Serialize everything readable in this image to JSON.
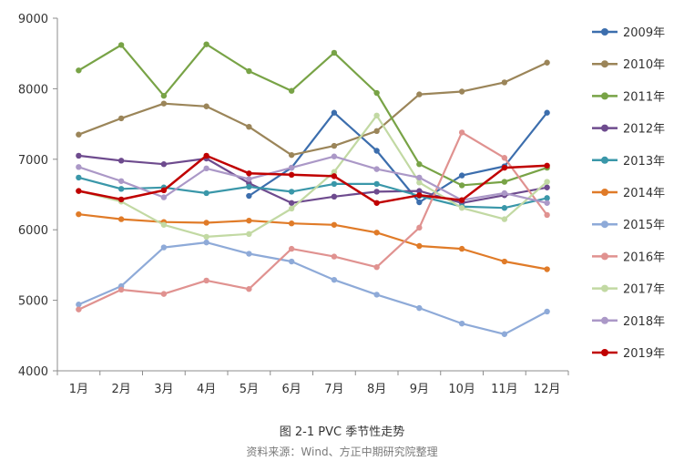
{
  "chart_data": {
    "type": "line",
    "title": "图 2-1 PVC 季节性走势",
    "source": "资料来源：Wind、方正中期研究院整理",
    "categories": [
      "1月",
      "2月",
      "3月",
      "4月",
      "5月",
      "6月",
      "7月",
      "8月",
      "9月",
      "10月",
      "11月",
      "12月"
    ],
    "ylim": [
      4000,
      9000
    ],
    "yticks": [
      4000,
      5000,
      6000,
      7000,
      8000,
      9000
    ],
    "grid": false,
    "legend_position": "right",
    "series": [
      {
        "name": "2009年",
        "color": "#3c6ead",
        "values": [
          null,
          null,
          null,
          null,
          6480,
          6880,
          7660,
          7120,
          6390,
          6770,
          6900,
          7660
        ]
      },
      {
        "name": "2010年",
        "color": "#9b8559",
        "values": [
          7350,
          7580,
          7790,
          7750,
          7460,
          7060,
          7190,
          7400,
          7920,
          7960,
          8090,
          8370
        ]
      },
      {
        "name": "2011年",
        "color": "#78a346",
        "values": [
          8260,
          8620,
          7900,
          8630,
          8250,
          7970,
          8510,
          7940,
          6930,
          6630,
          6680,
          6880
        ]
      },
      {
        "name": "2012年",
        "color": "#6e4b8e",
        "values": [
          7050,
          6980,
          6930,
          7010,
          6660,
          6380,
          6470,
          6540,
          6550,
          6380,
          6490,
          6600
        ]
      },
      {
        "name": "2013年",
        "color": "#3a97a9",
        "values": [
          6740,
          6580,
          6600,
          6520,
          6610,
          6540,
          6650,
          6650,
          6480,
          6330,
          6310,
          6450
        ]
      },
      {
        "name": "2014年",
        "color": "#e07b28",
        "values": [
          6220,
          6150,
          6110,
          6100,
          6130,
          6090,
          6070,
          5960,
          5770,
          5730,
          5550,
          5440
        ]
      },
      {
        "name": "2015年",
        "color": "#8eaad8",
        "values": [
          4940,
          5200,
          5750,
          5820,
          5660,
          5550,
          5290,
          5080,
          4890,
          4670,
          4520,
          4840
        ]
      },
      {
        "name": "2016年",
        "color": "#e09290",
        "values": [
          4870,
          5150,
          5090,
          5280,
          5160,
          5730,
          5620,
          5470,
          6030,
          7380,
          7020,
          6210
        ]
      },
      {
        "name": "2017年",
        "color": "#c2d9a3",
        "values": [
          6550,
          6400,
          6070,
          5900,
          5940,
          6300,
          6820,
          7620,
          6670,
          6310,
          6150,
          6680
        ]
      },
      {
        "name": "2018年",
        "color": "#ab98c7",
        "values": [
          6890,
          6690,
          6460,
          6870,
          6720,
          6880,
          7040,
          6860,
          6740,
          6420,
          6520,
          6380
        ]
      },
      {
        "name": "2019年",
        "color": "#c00000",
        "values": [
          6550,
          6430,
          6560,
          7050,
          6800,
          6780,
          6760,
          6380,
          6490,
          6420,
          6880,
          6910
        ]
      }
    ]
  }
}
